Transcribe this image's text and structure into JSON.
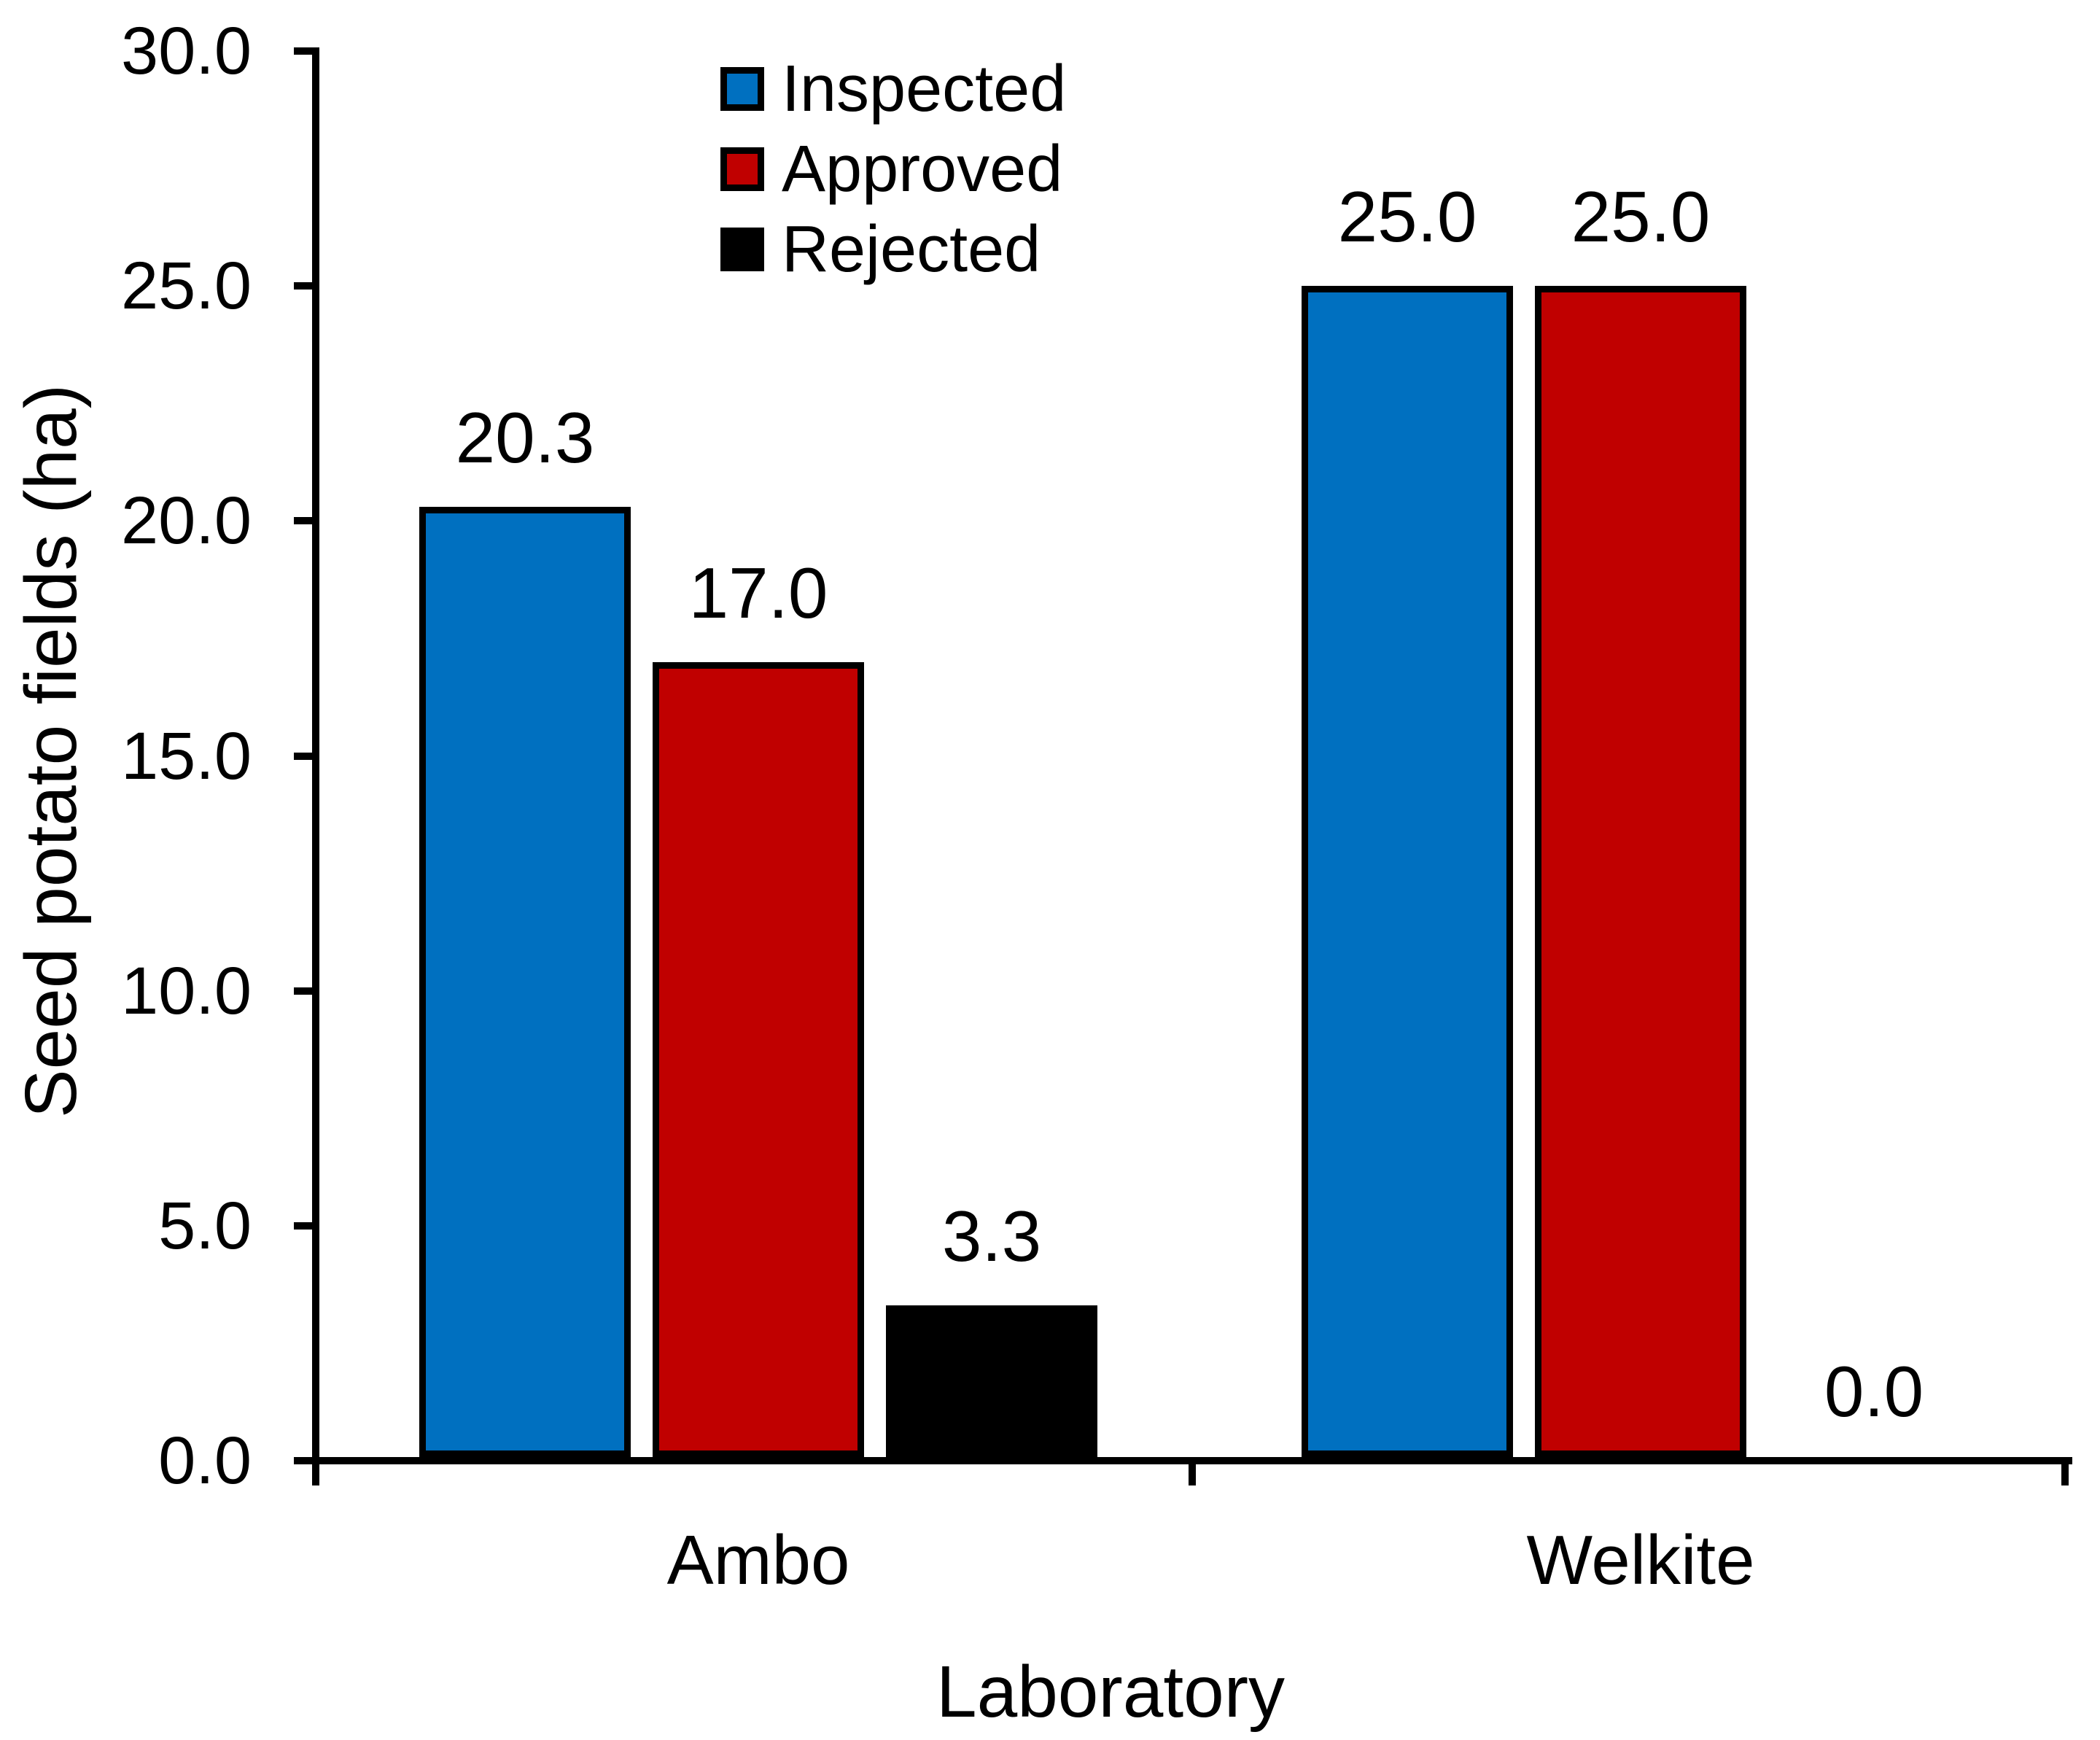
{
  "chart_data": {
    "type": "bar",
    "title": "",
    "xlabel": "Laboratory",
    "ylabel": "Seed potato fields (ha)",
    "categories": [
      "Ambo",
      "Welkite"
    ],
    "series": [
      {
        "name": "Inspected",
        "color": "#0070C0",
        "values": [
          20.3,
          25.0
        ]
      },
      {
        "name": "Approved",
        "color": "#C00000",
        "values": [
          17.0,
          25.0
        ]
      },
      {
        "name": "Rejected",
        "color": "#000000",
        "values": [
          3.3,
          0.0
        ]
      }
    ],
    "value_labels": [
      [
        "20.3",
        "17.0",
        "3.3"
      ],
      [
        "25.0",
        "25.0",
        "0.0"
      ]
    ],
    "ylim": [
      0,
      30
    ],
    "ytick_step": 5,
    "ytick_labels": [
      "0.0",
      "5.0",
      "10.0",
      "15.0",
      "20.0",
      "25.0",
      "30.0"
    ],
    "grid": false,
    "legend_position": "top-center",
    "axis_color": "#000000",
    "bar_border_color": "#000000",
    "background_color": "#FFFFFF"
  }
}
